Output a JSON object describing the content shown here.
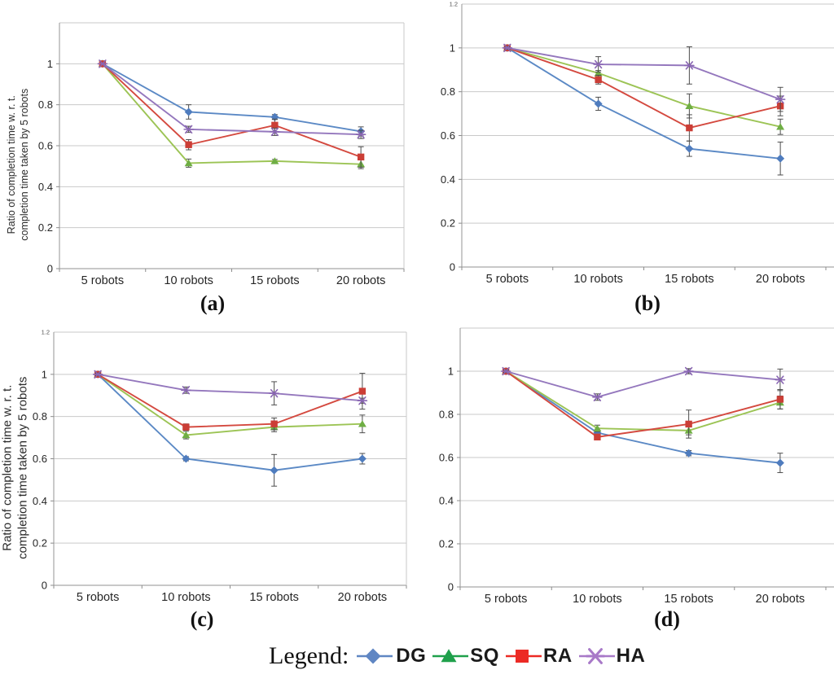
{
  "figure": {
    "legend": {
      "label": "Legend:",
      "items": [
        {
          "name": "DG",
          "marker": "diamond",
          "line_color": "#5b89c5",
          "marker_color": "#4f7cbe",
          "legend_color": "#5f86c3"
        },
        {
          "name": "SQ",
          "marker": "triangle",
          "line_color": "#9cc455",
          "marker_color": "#6fae44",
          "legend_color": "#1fa04b"
        },
        {
          "name": "RA",
          "marker": "square",
          "line_color": "#d4493f",
          "marker_color": "#cb3e36",
          "legend_color": "#ec2a24"
        },
        {
          "name": "HA",
          "marker": "asterisk",
          "line_color": "#9477bd",
          "marker_color": "#8a67b3",
          "legend_color": "#a879c8"
        }
      ]
    }
  },
  "chart_data": [
    {
      "type": "line",
      "id": "a",
      "caption": "(a)",
      "ylabel_lines": [
        "Ratio of completion time w. r. t.",
        "completion time taken by 5 robots"
      ],
      "categories": [
        "5 robots",
        "10 robots",
        "15 robots",
        "20 robots"
      ],
      "ylim": [
        0,
        1.2
      ],
      "ytick_labels": [
        "0",
        "0.2",
        "0.4",
        "0.6",
        "0.8",
        "1"
      ],
      "top_tick_label": "",
      "grid": true,
      "series": [
        {
          "name": "DG",
          "values": [
            1.0,
            0.765,
            0.74,
            0.67
          ],
          "errors": [
            0,
            0.035,
            0.012,
            0.022
          ]
        },
        {
          "name": "SQ",
          "values": [
            1.0,
            0.515,
            0.525,
            0.51
          ],
          "errors": [
            0,
            0.02,
            0.008,
            0.022
          ]
        },
        {
          "name": "RA",
          "values": [
            1.0,
            0.605,
            0.7,
            0.545
          ],
          "errors": [
            0,
            0.025,
            0.03,
            0.05
          ]
        },
        {
          "name": "HA",
          "values": [
            1.0,
            0.68,
            0.668,
            0.655
          ],
          "errors": [
            0,
            0.015,
            0.018,
            0.02
          ]
        }
      ]
    },
    {
      "type": "line",
      "id": "b",
      "caption": "(b)",
      "ylabel_lines": [],
      "categories": [
        "5 robots",
        "10 robots",
        "15 robots",
        "20 robots"
      ],
      "ylim": [
        0,
        1.2
      ],
      "ytick_labels": [
        "0",
        "0.2",
        "0.4",
        "0.6",
        "0.8",
        "1"
      ],
      "top_tick_label": "1.2",
      "grid": true,
      "series": [
        {
          "name": "DG",
          "values": [
            1.0,
            0.745,
            0.54,
            0.495
          ],
          "errors": [
            0.006,
            0.03,
            0.035,
            0.075
          ]
        },
        {
          "name": "SQ",
          "values": [
            1.0,
            0.885,
            0.735,
            0.64
          ],
          "errors": [
            0.006,
            0.012,
            0.055,
            0.035
          ]
        },
        {
          "name": "RA",
          "values": [
            1.0,
            0.855,
            0.635,
            0.735
          ],
          "errors": [
            0.006,
            0.02,
            0.06,
            0.045
          ]
        },
        {
          "name": "HA",
          "values": [
            1.0,
            0.925,
            0.92,
            0.765
          ],
          "errors": [
            0.006,
            0.035,
            0.085,
            0.055
          ]
        }
      ]
    },
    {
      "type": "line",
      "id": "c",
      "caption": "(c)",
      "ylabel_lines": [
        "Ratio of completion time w. r. t.",
        "completion time taken by 5 robots"
      ],
      "categories": [
        "5 robots",
        "10 robots",
        "15 robots",
        "20 robots"
      ],
      "ylim": [
        0,
        1.2
      ],
      "ytick_labels": [
        "0",
        "0.2",
        "0.4",
        "0.6",
        "0.8",
        "1"
      ],
      "top_tick_label": "1.2",
      "grid": true,
      "series": [
        {
          "name": "DG",
          "values": [
            1.0,
            0.6,
            0.545,
            0.6
          ],
          "errors": [
            0.006,
            0.01,
            0.075,
            0.025
          ]
        },
        {
          "name": "SQ",
          "values": [
            1.0,
            0.712,
            0.75,
            0.765
          ],
          "errors": [
            0.006,
            0.018,
            0.022,
            0.042
          ]
        },
        {
          "name": "RA",
          "values": [
            1.0,
            0.75,
            0.765,
            0.92
          ],
          "errors": [
            0.006,
            0.015,
            0.028,
            0.085
          ]
        },
        {
          "name": "HA",
          "values": [
            1.0,
            0.925,
            0.91,
            0.875
          ],
          "errors": [
            0.006,
            0.015,
            0.055,
            0.012
          ]
        }
      ]
    },
    {
      "type": "line",
      "id": "d",
      "caption": "(d)",
      "ylabel_lines": [],
      "categories": [
        "5 robots",
        "10 robots",
        "15 robots",
        "20 robots"
      ],
      "ylim": [
        0,
        1.2
      ],
      "ytick_labels": [
        "0",
        "0.2",
        "0.4",
        "0.6",
        "0.8",
        "1"
      ],
      "top_tick_label": "",
      "grid": true,
      "series": [
        {
          "name": "DG",
          "values": [
            1.0,
            0.715,
            0.62,
            0.575
          ],
          "errors": [
            0.006,
            0.012,
            0.012,
            0.045
          ]
        },
        {
          "name": "SQ",
          "values": [
            1.0,
            0.735,
            0.725,
            0.855
          ],
          "errors": [
            0.006,
            0.015,
            0.02,
            0.03
          ]
        },
        {
          "name": "RA",
          "values": [
            1.0,
            0.695,
            0.755,
            0.87
          ],
          "errors": [
            0.006,
            0.012,
            0.065,
            0.045
          ]
        },
        {
          "name": "HA",
          "values": [
            1.0,
            0.88,
            1.0,
            0.96
          ],
          "errors": [
            0.006,
            0.015,
            0.012,
            0.05
          ]
        }
      ]
    }
  ]
}
